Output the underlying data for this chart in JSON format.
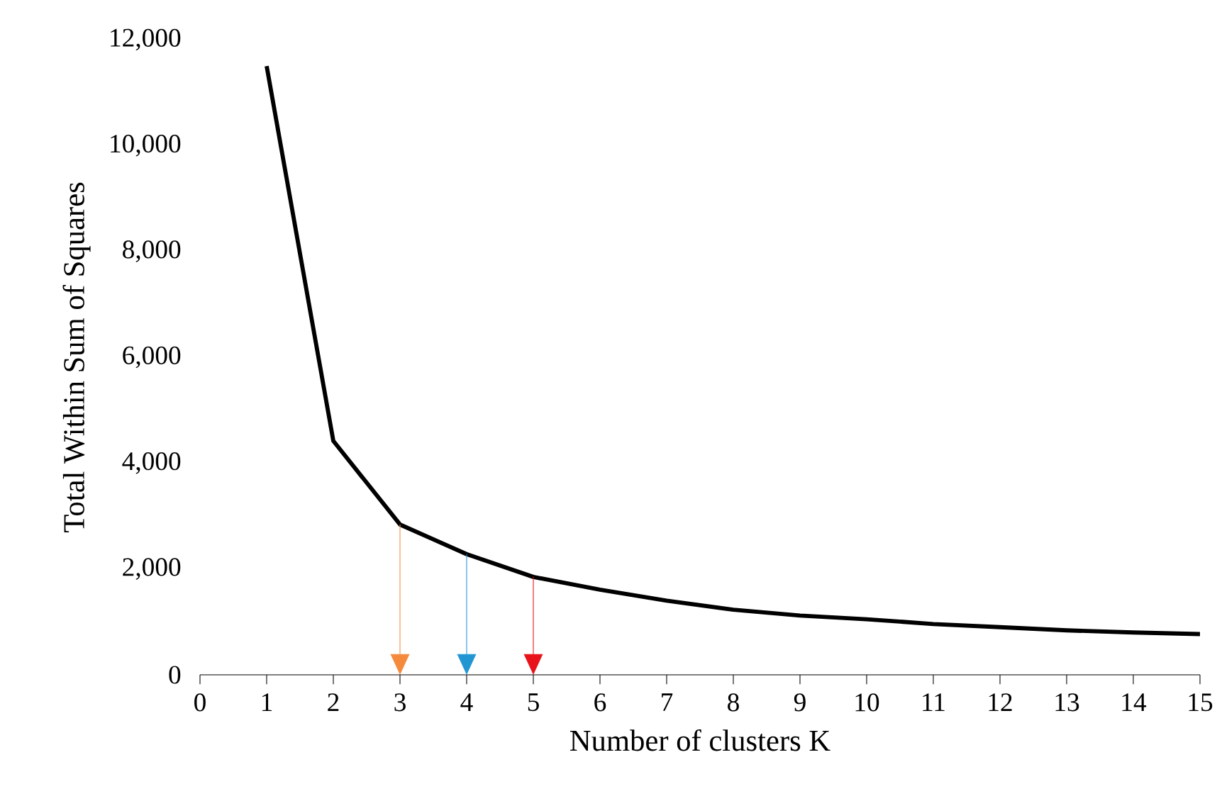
{
  "chart_data": {
    "type": "line",
    "xlabel": "Number of clusters K",
    "ylabel": "Total Within Sum of Squares",
    "x": [
      1,
      2,
      3,
      4,
      5,
      6,
      7,
      8,
      9,
      10,
      11,
      12,
      13,
      14,
      15
    ],
    "series": [
      {
        "color": "#000000",
        "values": [
          11500,
          4420,
          2840,
          2280,
          1850,
          1610,
          1400,
          1230,
          1120,
          1050,
          960,
          900,
          840,
          800,
          770
        ]
      }
    ],
    "xlim": [
      0,
      15
    ],
    "ylim": [
      0,
      12000
    ],
    "xticks": [
      0,
      1,
      2,
      3,
      4,
      5,
      6,
      7,
      8,
      9,
      10,
      11,
      12,
      13,
      14,
      15
    ],
    "yticks": [
      {
        "value": 0,
        "label": "0"
      },
      {
        "value": 2000,
        "label": "2,000"
      },
      {
        "value": 4000,
        "label": "4,000"
      },
      {
        "value": 6000,
        "label": "6,000"
      },
      {
        "value": 8000,
        "label": "8,000"
      },
      {
        "value": 10000,
        "label": "10,000"
      },
      {
        "value": 12000,
        "label": "12,000"
      }
    ],
    "ref_lines": [
      {
        "axis": "x",
        "value": 3,
        "color": "#f58a3c"
      },
      {
        "axis": "x",
        "value": 4,
        "color": "#2196d3"
      },
      {
        "axis": "x",
        "value": 5,
        "color": "#e8121a"
      }
    ],
    "grid": false,
    "marker": "none",
    "line_style": "solid"
  }
}
